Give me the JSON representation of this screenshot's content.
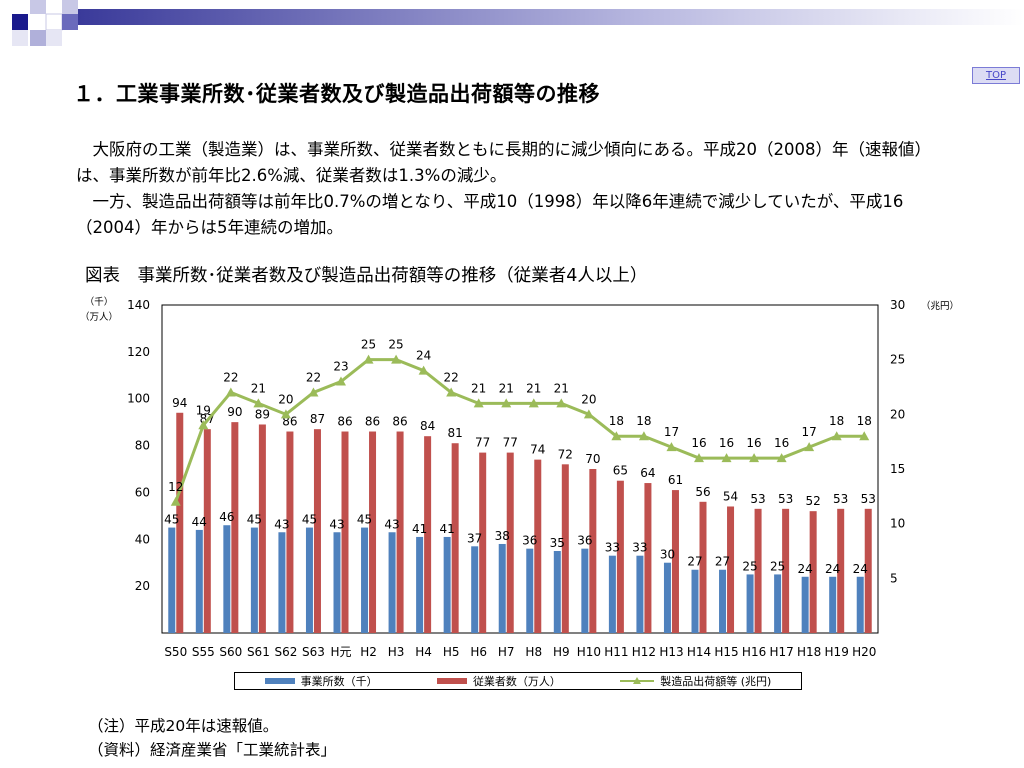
{
  "top_link": "TOP",
  "title": "１．工業事業所数･従業者数及び製造品出荷額等の推移",
  "paragraphs": [
    "大阪府の工業（製造業）は、事業所数、従業者数ともに長期的に減少傾向にある。平成20（2008）年（速報値）は、事業所数が前年比2.6%減、従業者数は1.3%の減少。",
    "一方、製造品出荷額等は前年比0.7%の増となり、平成10（1998）年以降6年連続で減少していたが、平成16（2004）年からは5年連続の増加。"
  ],
  "figure_title": "図表　事業所数･従業者数及び製造品出荷額等の推移（従業者4人以上）",
  "notes": [
    "（注）平成20年は速報値。",
    "（資料）経済産業省「工業統計表」"
  ],
  "colors": {
    "establishments": "#4f81bd",
    "employees": "#c0504d",
    "shipments": "#9bbb59"
  },
  "chart_data": {
    "type": "bar",
    "categories": [
      "S50",
      "S55",
      "S60",
      "S61",
      "S62",
      "S63",
      "H元",
      "H2",
      "H3",
      "H4",
      "H5",
      "H6",
      "H7",
      "H8",
      "H9",
      "H10",
      "H11",
      "H12",
      "H13",
      "H14",
      "H15",
      "H16",
      "H17",
      "H18",
      "H19",
      "H20"
    ],
    "left_axis_unit": [
      "（千）",
      "（万人）"
    ],
    "right_axis_unit": "（兆円）",
    "ylim_left": [
      0,
      140
    ],
    "yticks_left": [
      20,
      40,
      60,
      80,
      100,
      120,
      140
    ],
    "ylim_right": [
      0,
      30
    ],
    "yticks_right": [
      5,
      10,
      15,
      20,
      25,
      30
    ],
    "series": [
      {
        "name": "事業所数（千）",
        "type": "bar",
        "axis": "left",
        "values": [
          45,
          44,
          46,
          45,
          43,
          45,
          43,
          45,
          43,
          41,
          41,
          37,
          38,
          36,
          35,
          36,
          33,
          33,
          30,
          27,
          27,
          25,
          25,
          24,
          24,
          24
        ]
      },
      {
        "name": "従業者数（万人）",
        "type": "bar",
        "axis": "left",
        "values": [
          94,
          87,
          90,
          89,
          86,
          87,
          86,
          86,
          86,
          84,
          81,
          77,
          77,
          74,
          72,
          70,
          65,
          64,
          61,
          56,
          54,
          53,
          53,
          52,
          53,
          53
        ]
      },
      {
        "name": "製造品出荷額等 (兆円)",
        "type": "line",
        "axis": "right",
        "values": [
          12,
          19,
          22,
          21,
          20,
          22,
          23,
          25,
          25,
          24,
          22,
          21,
          21,
          21,
          21,
          20,
          18,
          18,
          17,
          16,
          16,
          16,
          16,
          17,
          18,
          18
        ]
      }
    ],
    "legend_position": "bottom",
    "grid": false
  }
}
